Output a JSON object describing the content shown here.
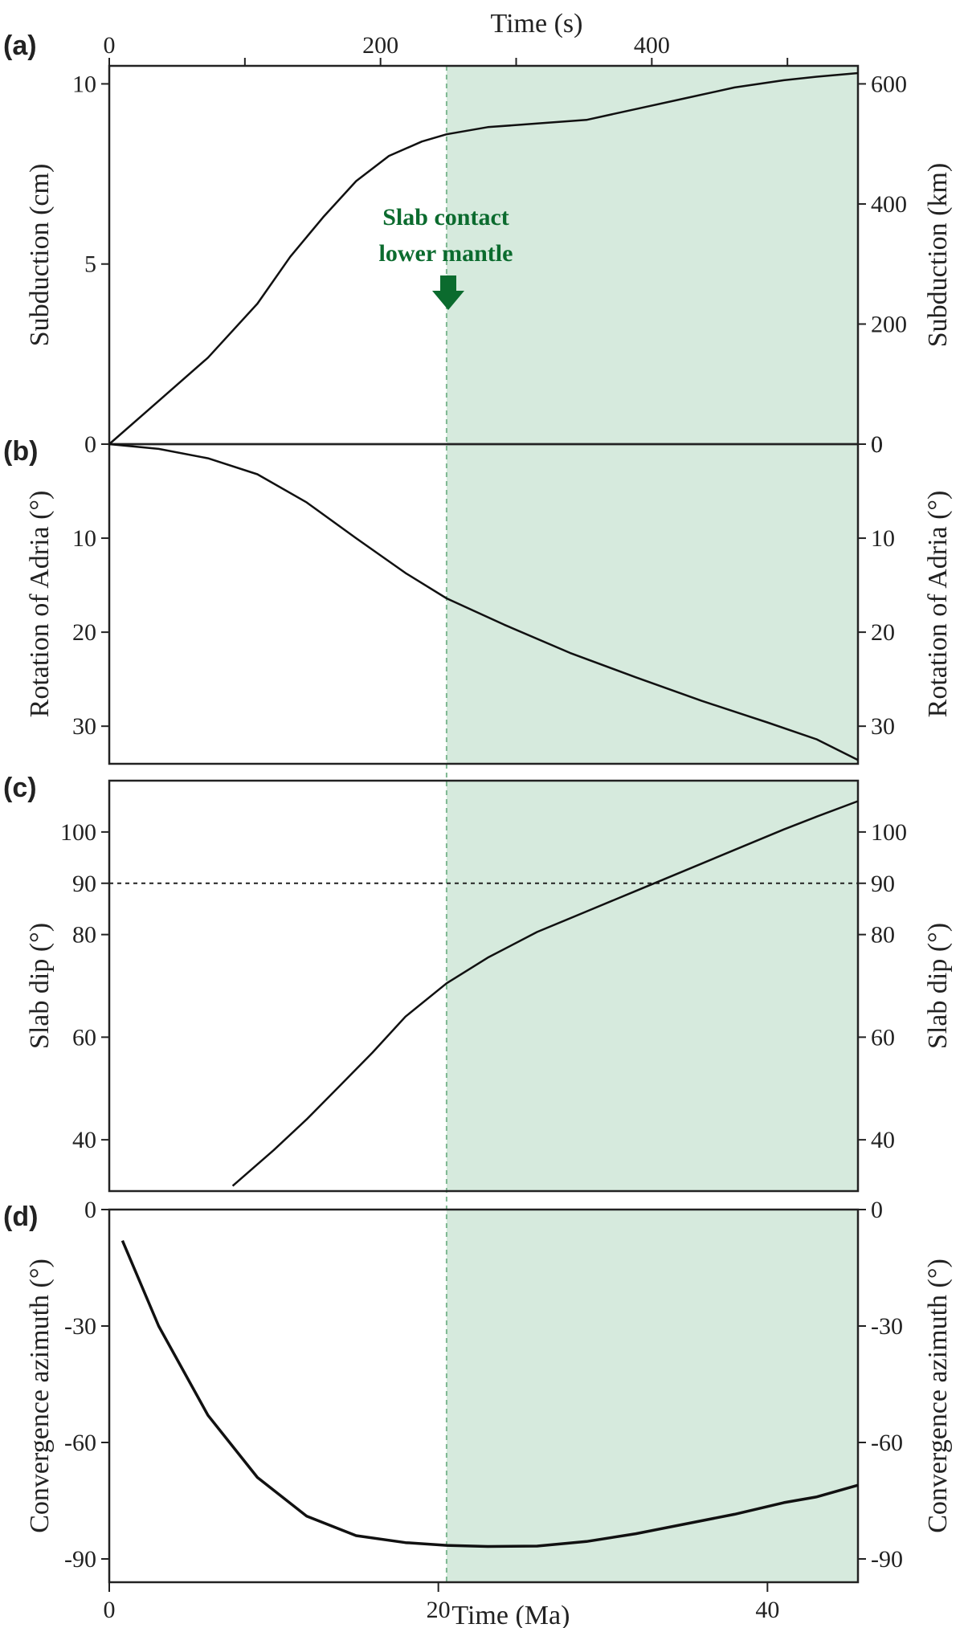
{
  "colors": {
    "shade": "#d6eadd",
    "annotation": "#0b6b2e",
    "line": "#111111"
  },
  "chart_data": {
    "type": "line",
    "x_label": "Time (Ma)",
    "x_range": [
      0,
      45.5
    ],
    "x_ticks": [
      "0",
      "20",
      "40"
    ],
    "top_axis": {
      "label": "Time (s)",
      "range": [
        0,
        552
      ],
      "ticks": [
        "0",
        "200",
        "400"
      ]
    },
    "shaded_region": {
      "x_start": 20.5,
      "x_end": 45.5,
      "label": [
        "Slab contact",
        "lower mantle"
      ]
    },
    "panels": [
      {
        "label": "(a)",
        "ylabel_left": "Subduction (cm)",
        "ylabel_right": "Subduction (km)",
        "ylim": [
          0,
          10.5
        ],
        "left_ticks": [
          "0",
          "5",
          "10"
        ],
        "right_ticks": [
          "0",
          "200",
          "400",
          "600"
        ],
        "x": [
          0,
          3,
          6,
          9,
          11,
          13,
          15,
          17,
          19,
          20.5,
          23,
          26,
          29,
          32,
          35,
          38,
          41,
          43,
          45.5
        ],
        "y": [
          0,
          1.2,
          2.4,
          3.9,
          5.2,
          6.3,
          7.3,
          8.0,
          8.4,
          8.6,
          8.8,
          8.9,
          9.0,
          9.3,
          9.6,
          9.9,
          10.1,
          10.2,
          10.3
        ]
      },
      {
        "label": "(b)",
        "ylabel_left": "Rotation of Adria (°)",
        "ylabel_right": "Rotation of Adria (°)",
        "ylim": [
          0,
          34
        ],
        "left_ticks": [
          "10",
          "20",
          "30"
        ],
        "right_ticks": [
          "0",
          "10",
          "20",
          "30"
        ],
        "x": [
          0,
          3,
          6,
          9,
          12,
          15,
          18,
          20.5,
          24,
          28,
          32,
          36,
          40,
          43,
          45.5
        ],
        "y": [
          0,
          0.5,
          1.5,
          3.2,
          6.2,
          10.0,
          13.7,
          16.4,
          19.2,
          22.2,
          24.8,
          27.3,
          29.6,
          31.4,
          33.6
        ]
      },
      {
        "label": "(c)",
        "ylabel_left": "Slab dip (°)",
        "ylabel_right": "Slab dip (°)",
        "ylim": [
          30,
          110
        ],
        "left_ticks": [
          "40",
          "60",
          "80",
          "90",
          "100"
        ],
        "right_ticks": [
          "40",
          "60",
          "80",
          "90",
          "100"
        ],
        "reference_line": 90,
        "x": [
          7.5,
          10,
          12,
          14,
          16,
          18,
          20.5,
          23,
          26,
          29,
          32,
          35,
          38,
          41,
          43,
          45.5
        ],
        "y": [
          31,
          38,
          44,
          50.5,
          57,
          64,
          70.5,
          75.5,
          80.5,
          84.5,
          88.5,
          92.5,
          96.5,
          100.5,
          103,
          106
        ]
      },
      {
        "label": "(d)",
        "ylabel_left": "Convergence azimuth (°)",
        "ylabel_right": "Convergence azimuth (°)",
        "ylim": [
          -96,
          0
        ],
        "left_ticks": [
          "0",
          "-30",
          "-60",
          "-90"
        ],
        "right_ticks": [
          "0",
          "-30",
          "-60",
          "-90"
        ],
        "x": [
          0.8,
          3,
          6,
          9,
          12,
          15,
          18,
          20.5,
          23,
          26,
          29,
          32,
          35,
          38,
          41,
          43,
          45.5
        ],
        "y": [
          -8,
          -30,
          -53,
          -69,
          -79,
          -84,
          -85.8,
          -86.5,
          -86.8,
          -86.7,
          -85.5,
          -83.5,
          -81,
          -78.5,
          -75.5,
          -74,
          -71
        ]
      }
    ]
  }
}
